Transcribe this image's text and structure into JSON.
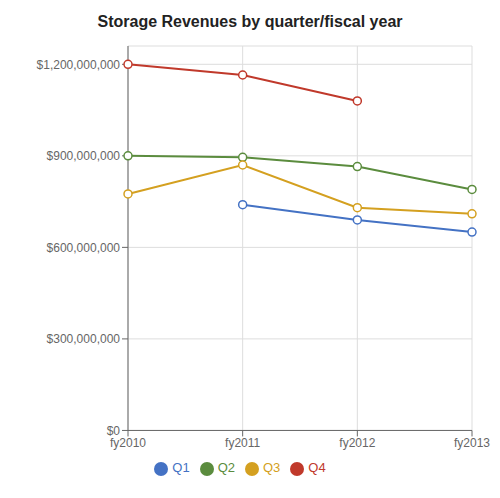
{
  "chart_data": {
    "type": "line",
    "title": "Storage Revenues by quarter/fiscal year",
    "categories": [
      "fy2010",
      "fy2011",
      "fy2012",
      "fy2013"
    ],
    "series": [
      {
        "name": "Q1",
        "color": "#4472C4",
        "values": [
          null,
          740000000,
          690000000,
          650000000
        ]
      },
      {
        "name": "Q2",
        "color": "#5B8C3E",
        "values": [
          900000000,
          895000000,
          865000000,
          790000000
        ]
      },
      {
        "name": "Q3",
        "color": "#D4A020",
        "values": [
          775000000,
          870000000,
          730000000,
          710000000
        ]
      },
      {
        "name": "Q4",
        "color": "#C0392B",
        "values": [
          1200000000,
          1165000000,
          1080000000,
          null
        ]
      }
    ],
    "ylim": [
      0,
      1260000000
    ],
    "yticks": [
      {
        "value": 0,
        "label": "$0"
      },
      {
        "value": 300000000,
        "label": "$300,000,000"
      },
      {
        "value": 600000000,
        "label": "$600,000,000"
      },
      {
        "value": 900000000,
        "label": "$900,000,000"
      },
      {
        "value": 1200000000,
        "label": "$1,200,000,000"
      }
    ],
    "grid": true,
    "legend": "bottom",
    "marker": "circle"
  }
}
